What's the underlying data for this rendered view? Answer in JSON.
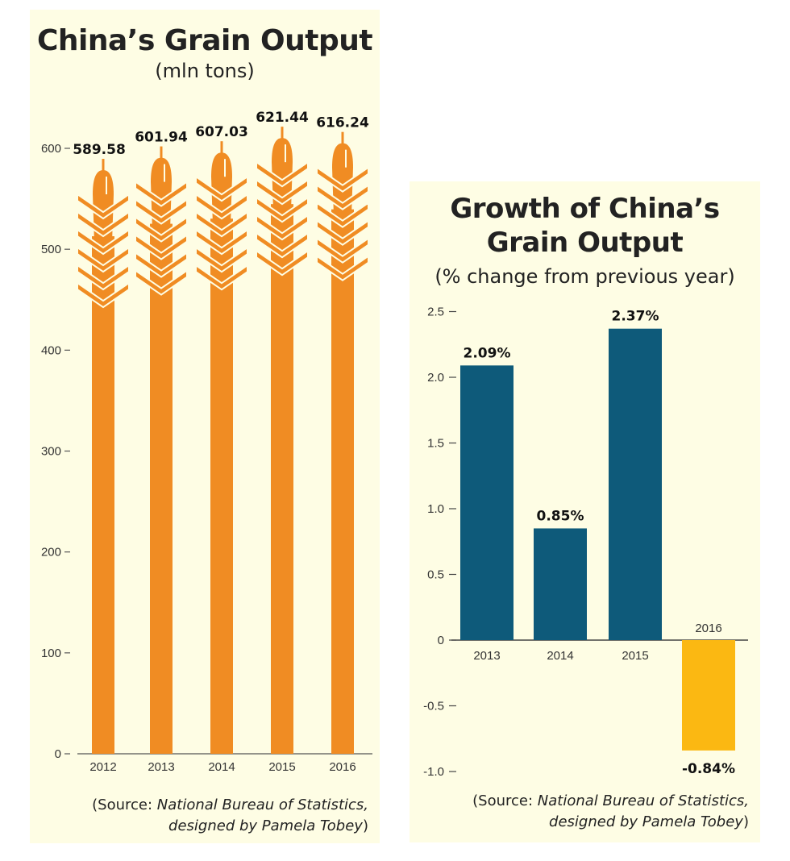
{
  "colors": {
    "panel_bg": "#fefde4",
    "wheat": "#f08c23",
    "positive_bar": "#0e5a7a",
    "negative_bar": "#fbb812",
    "text": "#222222"
  },
  "icons": {
    "bar_top": "wheat-ear-icon"
  },
  "left": {
    "title": "China’s Grain Output",
    "subtitle": "(mln tons)",
    "source_prefix": "(Source: ",
    "source_italic_1": "National Bureau of Statistics,",
    "source_italic_2": "designed by Pamela Tobey",
    "source_suffix": ")"
  },
  "right": {
    "title_line1": "Growth of China’s",
    "title_line2": "Grain Output",
    "subtitle": "(% change from previous year)",
    "source_prefix": "(Source: ",
    "source_italic_1": "National Bureau of Statistics,",
    "source_italic_2": "designed by Pamela Tobey",
    "source_suffix": ")"
  },
  "chart_data": [
    {
      "type": "bar",
      "title": "China’s Grain Output",
      "subtitle": "(mln tons)",
      "categories": [
        "2012",
        "2013",
        "2014",
        "2015",
        "2016"
      ],
      "values": [
        589.58,
        601.94,
        607.03,
        621.44,
        616.24
      ],
      "value_labels": [
        "589.58",
        "601.94",
        "607.03",
        "621.44",
        "616.24"
      ],
      "ylim": [
        0,
        600
      ],
      "yticks": [
        0,
        100,
        200,
        300,
        400,
        500,
        600
      ],
      "ytick_labels": [
        "0",
        "100",
        "200",
        "300",
        "400",
        "500",
        "600"
      ],
      "grid": false,
      "bar_style": "wheat stalk"
    },
    {
      "type": "bar",
      "title": "Growth of China’s Grain Output",
      "subtitle": "(% change from previous year)",
      "categories": [
        "2013",
        "2014",
        "2015",
        "2016"
      ],
      "values": [
        2.09,
        0.85,
        2.37,
        -0.84
      ],
      "value_labels": [
        "2.09%",
        "0.85%",
        "2.37%",
        "-0.84%"
      ],
      "ylim": [
        -1.0,
        2.5
      ],
      "yticks": [
        -1.0,
        -0.5,
        0,
        0.5,
        1.0,
        1.5,
        2.0,
        2.5
      ],
      "ytick_labels": [
        "-1.0",
        "-0.5",
        "0",
        "0.5",
        "1.0",
        "1.5",
        "2.0",
        "2.5"
      ],
      "grid": false
    }
  ]
}
